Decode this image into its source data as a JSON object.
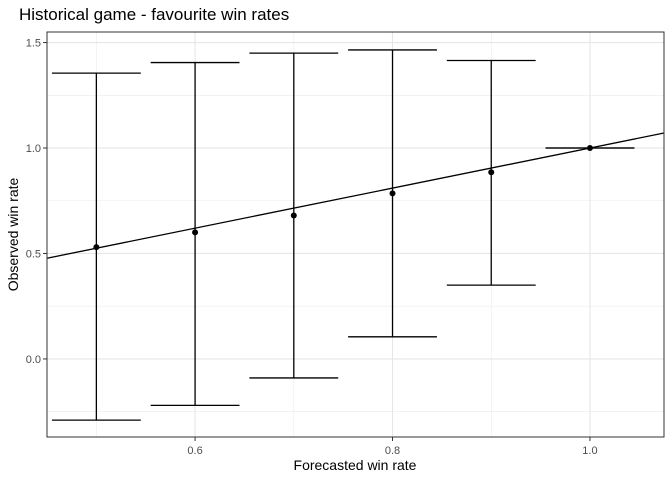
{
  "chart_data": {
    "type": "scatter",
    "title": "Historical game - favourite win rates",
    "xlabel": "Forecasted win rate",
    "ylabel": "Observed win rate",
    "xlim": [
      0.45,
      1.075
    ],
    "ylim": [
      -0.37,
      1.55
    ],
    "xticks": [
      0.6,
      0.8,
      1.0
    ],
    "xtick_labels": [
      "0.6",
      "0.8",
      "1.0"
    ],
    "yticks": [
      0.0,
      0.5,
      1.0,
      1.5
    ],
    "ytick_labels": [
      "0.0",
      "0.5",
      "1.0",
      "1.5"
    ],
    "grid": true,
    "legend": "none",
    "points": [
      {
        "x": 0.5,
        "y": 0.53,
        "ymin": -0.29,
        "ymax": 1.355
      },
      {
        "x": 0.6,
        "y": 0.6,
        "ymin": -0.22,
        "ymax": 1.405
      },
      {
        "x": 0.7,
        "y": 0.68,
        "ymin": -0.09,
        "ymax": 1.45
      },
      {
        "x": 0.8,
        "y": 0.785,
        "ymin": 0.105,
        "ymax": 1.465
      },
      {
        "x": 0.9,
        "y": 0.885,
        "ymin": 0.35,
        "ymax": 1.415
      },
      {
        "x": 1.0,
        "y": 1.0,
        "ymin": 1.0,
        "ymax": 1.0
      }
    ],
    "fit_line": {
      "intercept": 0.05,
      "slope": 0.95
    }
  }
}
